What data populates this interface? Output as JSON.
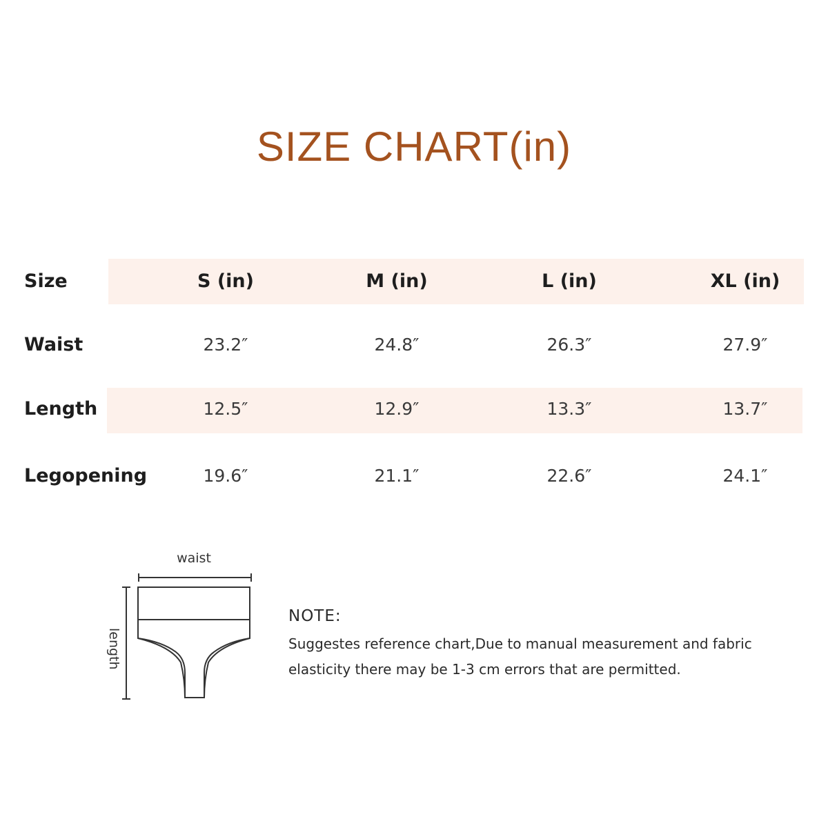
{
  "title": "SIZE CHART(in)",
  "accent_color": "#a4521f",
  "band_color": "#fdf1eb",
  "table": {
    "header": {
      "label": "Size",
      "cells": [
        "S (in)",
        "M (in)",
        "L (in)",
        "XL (in)"
      ]
    },
    "rows": [
      {
        "label": "Waist",
        "cells": [
          "23.2″",
          "24.8″",
          "26.3″",
          "27.9″"
        ]
      },
      {
        "label": "Length",
        "cells": [
          "12.5″",
          "12.9″",
          "13.3″",
          "13.7″"
        ]
      },
      {
        "label": "Legopening",
        "cells": [
          "19.6″",
          "21.1″",
          "22.6″",
          "24.1″"
        ]
      }
    ]
  },
  "diagram": {
    "waist_label": "waist",
    "length_label": "length"
  },
  "note": {
    "heading": "NOTE:",
    "line1": "Suggestes reference chart,Due to manual measurement and fabric",
    "line2": "elasticity there may be 1-3 cm errors that are permitted."
  }
}
